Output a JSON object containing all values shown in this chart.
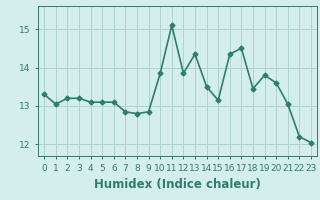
{
  "x": [
    0,
    1,
    2,
    3,
    4,
    5,
    6,
    7,
    8,
    9,
    10,
    11,
    12,
    13,
    14,
    15,
    16,
    17,
    18,
    19,
    20,
    21,
    22,
    23
  ],
  "y": [
    13.3,
    13.05,
    13.2,
    13.2,
    13.1,
    13.1,
    13.1,
    12.85,
    12.8,
    12.85,
    13.85,
    15.1,
    13.85,
    14.35,
    13.5,
    13.15,
    14.35,
    14.5,
    13.45,
    13.8,
    13.6,
    13.05,
    12.2,
    12.05
  ],
  "line_color": "#2e7d6e",
  "marker": "D",
  "marker_size": 2.5,
  "bg_color": "#d4eeec",
  "grid_color": "#aed4d0",
  "xlabel": "Humidex (Indice chaleur)",
  "ylim": [
    11.7,
    15.6
  ],
  "xlim": [
    -0.5,
    23.5
  ],
  "yticks": [
    12,
    13,
    14,
    15
  ],
  "xticks": [
    0,
    1,
    2,
    3,
    4,
    5,
    6,
    7,
    8,
    9,
    10,
    11,
    12,
    13,
    14,
    15,
    16,
    17,
    18,
    19,
    20,
    21,
    22,
    23
  ],
  "tick_fontsize": 6.5,
  "xlabel_fontsize": 8.5,
  "line_width": 1.2
}
